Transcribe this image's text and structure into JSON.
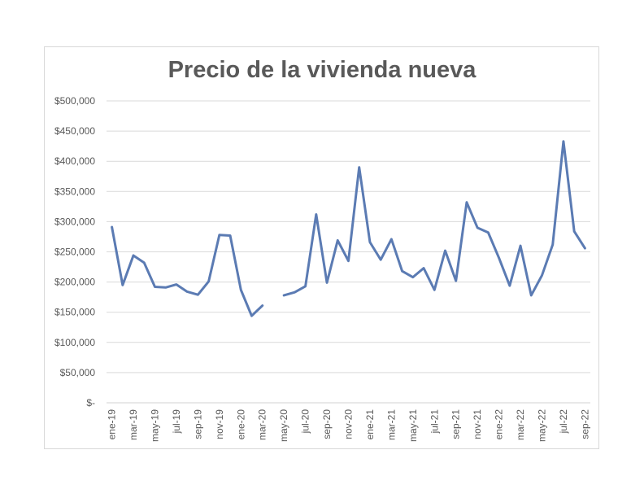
{
  "chart_data": {
    "type": "line",
    "title": "Precio de la vivienda nueva",
    "xlabel": "",
    "ylabel": "",
    "ylim": [
      0,
      500000
    ],
    "grid": true,
    "line_color": "#5b7bb3",
    "y_ticks": [
      {
        "value": 0,
        "label": "$-"
      },
      {
        "value": 50000,
        "label": "$50,000"
      },
      {
        "value": 100000,
        "label": "$100,000"
      },
      {
        "value": 150000,
        "label": "$150,000"
      },
      {
        "value": 200000,
        "label": "$200,000"
      },
      {
        "value": 250000,
        "label": "$250,000"
      },
      {
        "value": 300000,
        "label": "$300,000"
      },
      {
        "value": 350000,
        "label": "$350,000"
      },
      {
        "value": 400000,
        "label": "$400,000"
      },
      {
        "value": 450000,
        "label": "$450,000"
      },
      {
        "value": 500000,
        "label": "$500,000"
      }
    ],
    "categories": [
      "ene-19",
      "feb-19",
      "mar-19",
      "abr-19",
      "may-19",
      "jun-19",
      "jul-19",
      "ago-19",
      "sep-19",
      "oct-19",
      "nov-19",
      "dic-19",
      "ene-20",
      "feb-20",
      "mar-20",
      "abr-20",
      "may-20",
      "jun-20",
      "jul-20",
      "ago-20",
      "sep-20",
      "oct-20",
      "nov-20",
      "dic-20",
      "ene-21",
      "feb-21",
      "mar-21",
      "abr-21",
      "may-21",
      "jun-21",
      "jul-21",
      "ago-21",
      "sep-21",
      "oct-21",
      "nov-21",
      "dic-21",
      "ene-22",
      "feb-22",
      "mar-22",
      "abr-22",
      "may-22",
      "jun-22",
      "jul-22",
      "ago-22",
      "sep-22"
    ],
    "x_tick_labels": [
      "ene-19",
      "mar-19",
      "may-19",
      "jul-19",
      "sep-19",
      "nov-19",
      "ene-20",
      "mar-20",
      "may-20",
      "jul-20",
      "sep-20",
      "nov-20",
      "ene-21",
      "mar-21",
      "may-21",
      "jul-21",
      "sep-21",
      "nov-21",
      "ene-22",
      "mar-22",
      "may-22",
      "jul-22",
      "sep-22"
    ],
    "series": [
      {
        "values": [
          291000,
          195000,
          244000,
          232000,
          192000,
          191000,
          196000,
          184000,
          179000,
          201000,
          278000,
          277000,
          187000,
          144000,
          161000,
          null,
          178000,
          183000,
          193000,
          312000,
          199000,
          269000,
          235000,
          390000,
          266000,
          237000,
          271000,
          218000,
          208000,
          223000,
          187000,
          252000,
          202000,
          332000,
          290000,
          282000,
          240000,
          194000,
          260000,
          178000,
          211000,
          262000,
          433000,
          284000,
          256000
        ]
      }
    ]
  }
}
